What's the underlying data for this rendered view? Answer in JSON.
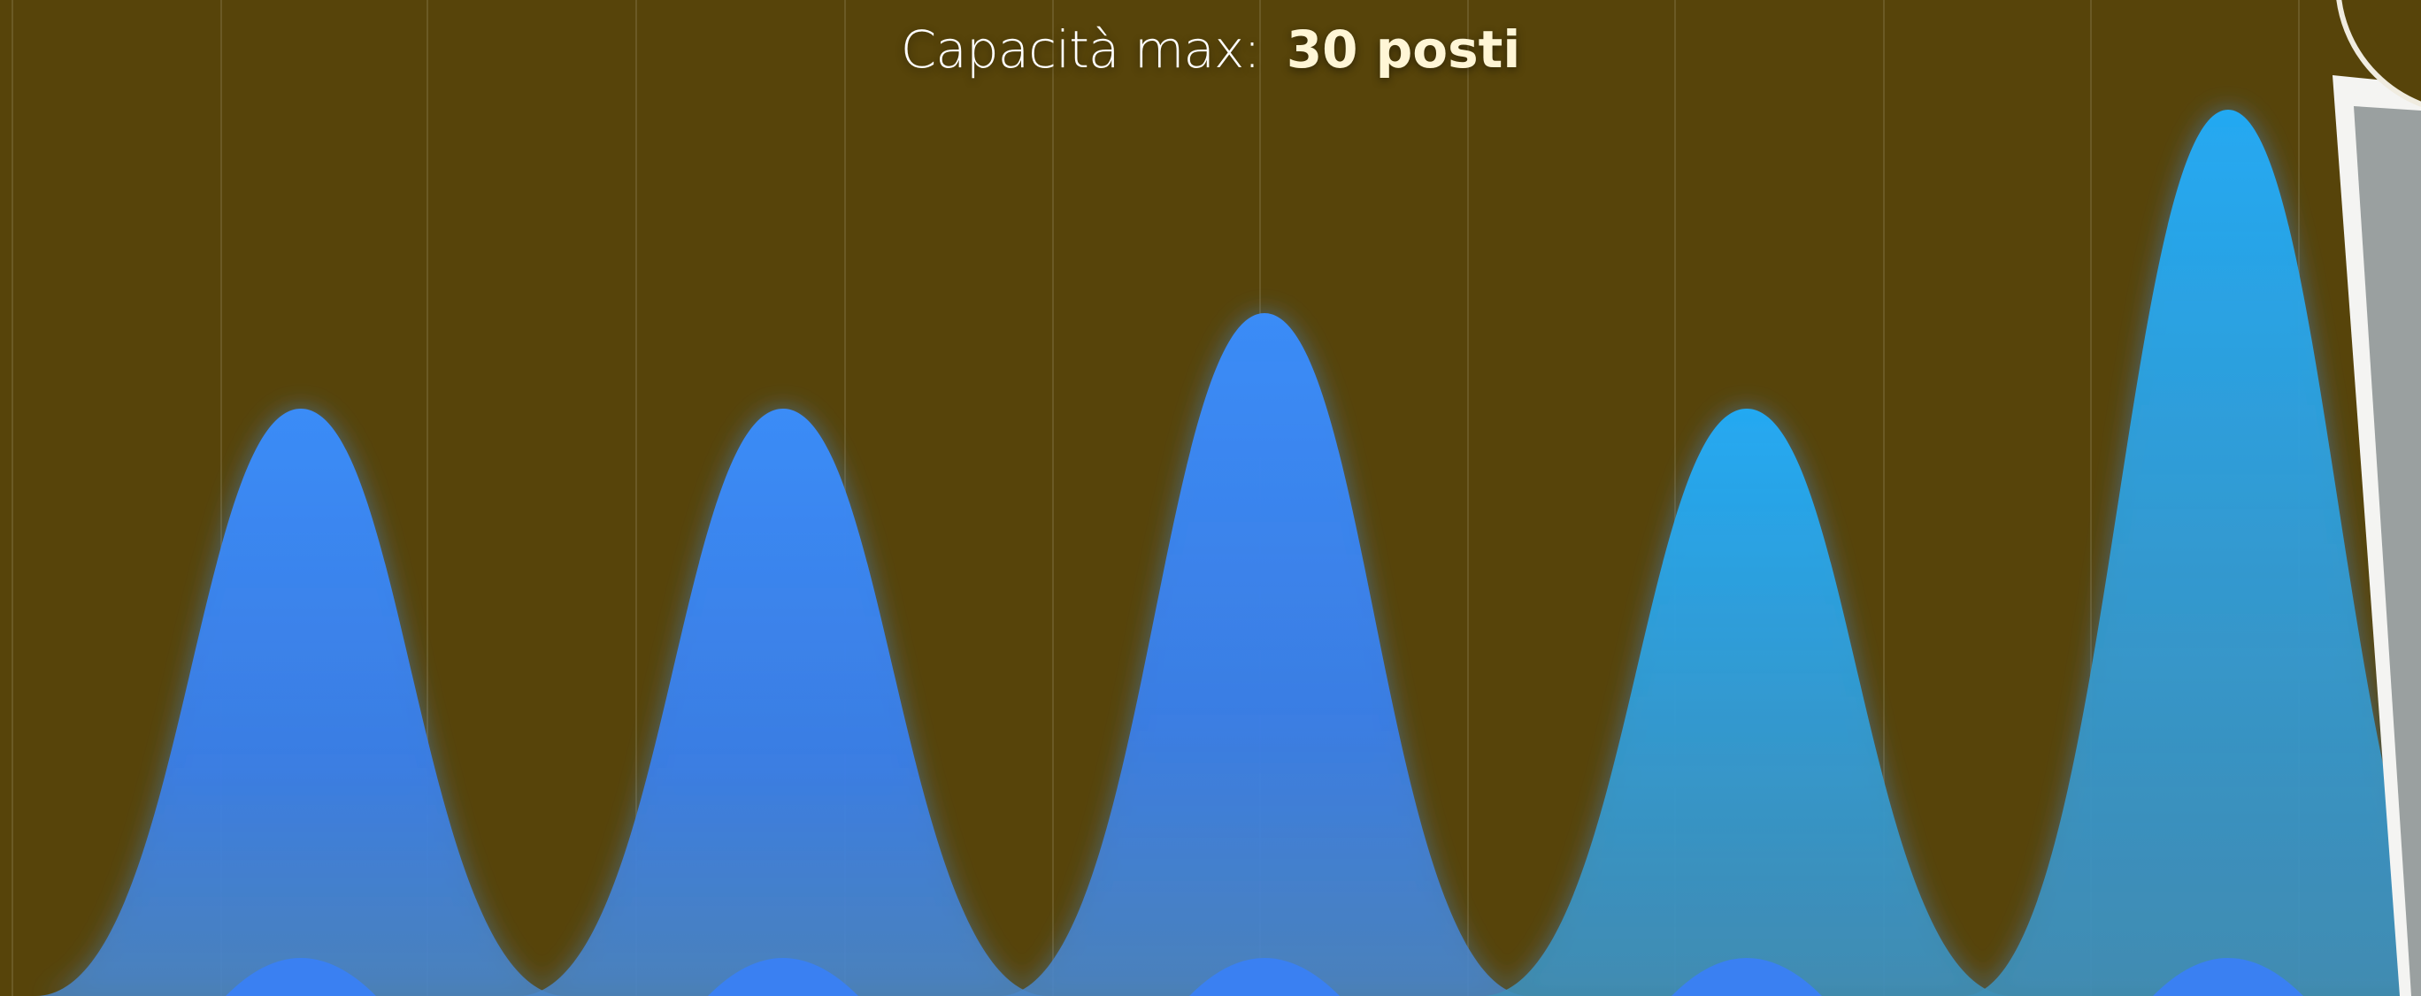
{
  "header": {
    "label": "Capacità max:",
    "value": "30 posti"
  }
}
